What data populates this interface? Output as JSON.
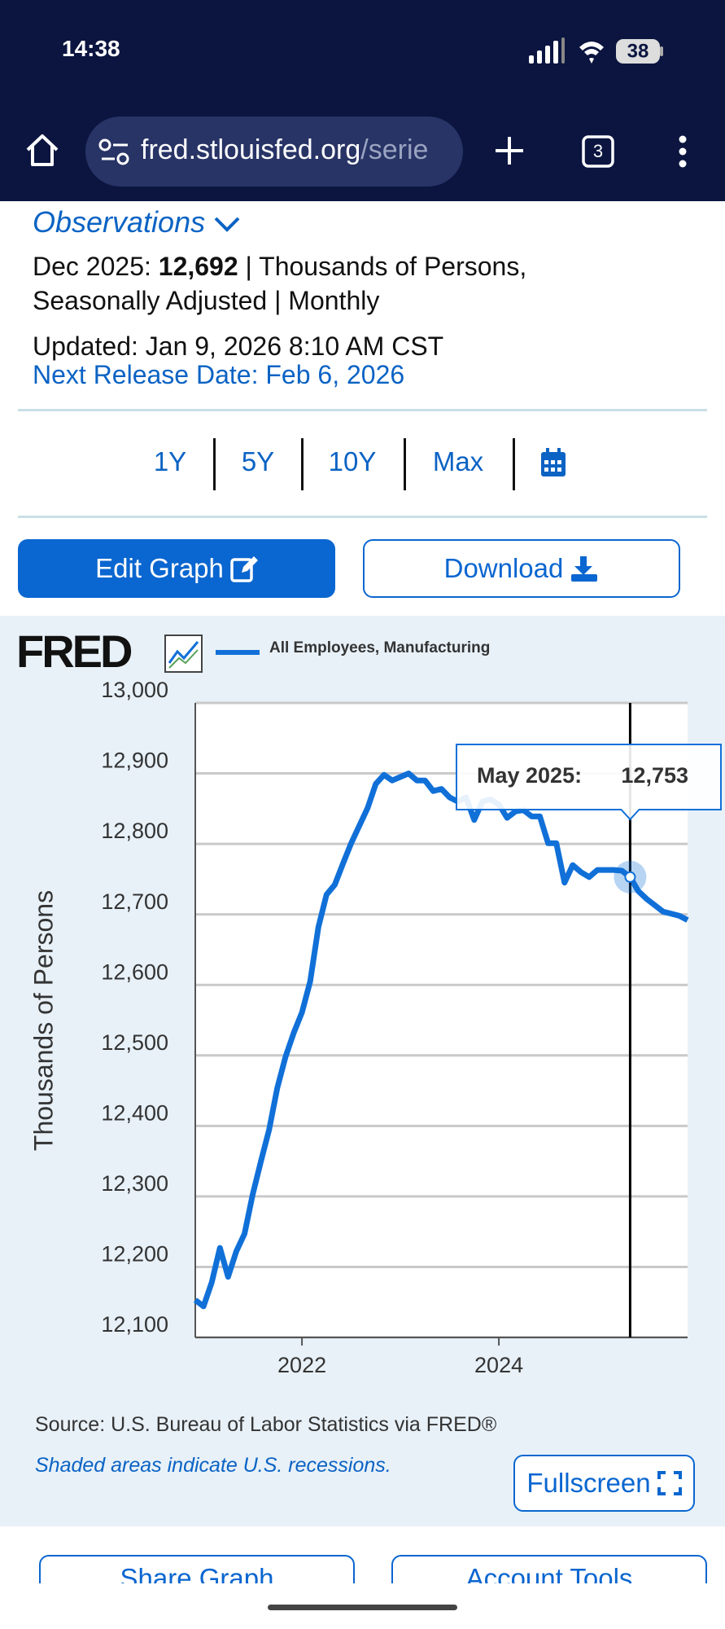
{
  "status_bar": {
    "time": "14:38",
    "battery": "38"
  },
  "browser": {
    "url_host": "fred.stlouisfed.org",
    "url_path": "/serie",
    "tab_count": "3"
  },
  "observations": {
    "heading": "Observations",
    "date": "Dec 2025:",
    "value": "12,692",
    "units": "| Thousands of Persons,",
    "adjustment": "Seasonally Adjusted | Monthly",
    "updated": "Updated: Jan 9, 2026 8:10 AM CST",
    "next_release": "Next Release Date: Feb 6, 2026"
  },
  "range_buttons": [
    "1Y",
    "5Y",
    "10Y",
    "Max"
  ],
  "actions": {
    "edit": "Edit Graph",
    "download": "Download"
  },
  "chart_data": {
    "type": "line",
    "logo": "FRED",
    "x": [
      "2020-12",
      "2021-01",
      "2021-02",
      "2021-03",
      "2021-04",
      "2021-05",
      "2021-06",
      "2021-07",
      "2021-08",
      "2021-09",
      "2021-10",
      "2021-11",
      "2021-12",
      "2022-01",
      "2022-02",
      "2022-03",
      "2022-04",
      "2022-05",
      "2022-06",
      "2022-07",
      "2022-08",
      "2022-09",
      "2022-10",
      "2022-11",
      "2022-12",
      "2023-01",
      "2023-02",
      "2023-03",
      "2023-04",
      "2023-05",
      "2023-06",
      "2023-07",
      "2023-08",
      "2023-09",
      "2023-10",
      "2023-11",
      "2023-12",
      "2024-01",
      "2024-02",
      "2024-03",
      "2024-04",
      "2024-05",
      "2024-06",
      "2024-07",
      "2024-08",
      "2024-09",
      "2024-10",
      "2024-11",
      "2024-12",
      "2025-01",
      "2025-02",
      "2025-03",
      "2025-04",
      "2025-05",
      "2025-06",
      "2025-07",
      "2025-08",
      "2025-09",
      "2025-10",
      "2025-11",
      "2025-12"
    ],
    "series": [
      {
        "name": "All Employees, Manufacturing",
        "color": "#1170d8",
        "values": [
          12153,
          12144,
          12178,
          12227,
          12186,
          12222,
          12247,
          12303,
          12350,
          12395,
          12454,
          12498,
          12532,
          12561,
          12605,
          12682,
          12728,
          12742,
          12772,
          12801,
          12826,
          12851,
          12885,
          12898,
          12890,
          12895,
          12900,
          12890,
          12890,
          12875,
          12878,
          12866,
          12860,
          12866,
          12834,
          12860,
          12863,
          12856,
          12837,
          12846,
          12848,
          12839,
          12839,
          12801,
          12801,
          12745,
          12770,
          12760,
          12753,
          12763,
          12763,
          12763,
          12762,
          12753,
          12733,
          12722,
          12713,
          12704,
          12701,
          12698,
          12692
        ]
      }
    ],
    "xlim": [
      "2020-12",
      "2025-12"
    ],
    "xticks": [
      {
        "value": "2022-01",
        "label": "2022"
      },
      {
        "value": "2024-01",
        "label": "2024"
      }
    ],
    "ylim": [
      12100,
      13000
    ],
    "yticks": [
      {
        "value": 12100,
        "label": "12,100"
      },
      {
        "value": 12200,
        "label": "12,200"
      },
      {
        "value": 12300,
        "label": "12,300"
      },
      {
        "value": 12400,
        "label": "12,400"
      },
      {
        "value": 12500,
        "label": "12,500"
      },
      {
        "value": 12600,
        "label": "12,600"
      },
      {
        "value": 12700,
        "label": "12,700"
      },
      {
        "value": 12800,
        "label": "12,800"
      },
      {
        "value": 12900,
        "label": "12,900"
      },
      {
        "value": 13000,
        "label": "13,000"
      }
    ],
    "ylabel": "Thousands of Persons",
    "grid": true,
    "tooltip": {
      "x": "2025-05",
      "label": "May 2025:",
      "value_label": "12,753"
    }
  },
  "source": "Source: U.S. Bureau of Labor Statistics via FRED®",
  "recession_note": "Shaded areas indicate U.S. recessions.",
  "fullscreen": "Fullscreen",
  "bottom_buttons": [
    "Share Graph",
    "Account Tools"
  ]
}
